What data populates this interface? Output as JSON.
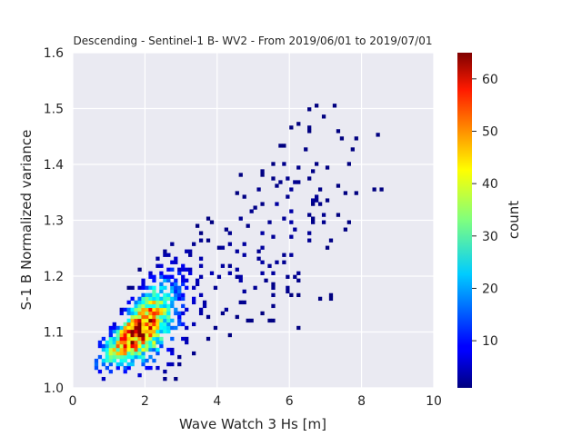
{
  "chart_data": {
    "type": "heatmap",
    "title": "Descending - Sentinel-1 B- WV2 - From 2019/06/01 to 2019/07/01",
    "xlabel": "Wave Watch 3 Hs [m]",
    "ylabel": "S-1 B Normalized variance",
    "xlim": [
      0,
      10
    ],
    "ylim": [
      1.0,
      1.6
    ],
    "xticks": [
      0,
      2,
      4,
      6,
      8,
      10
    ],
    "yticks": [
      1.0,
      1.1,
      1.2,
      1.3,
      1.4,
      1.5,
      1.6
    ],
    "grid": true,
    "colormap": "jet",
    "colorbar": {
      "label": "count",
      "min": 1,
      "max": 65,
      "ticks": [
        10,
        20,
        30,
        40,
        50,
        60
      ]
    },
    "density_model": {
      "description": "2D histogram of counts; dense core near Hs 1.5-2 m, variance 1.07-1.10, spreading upward with Hs",
      "core": {
        "x": 1.8,
        "y": 1.085,
        "peak_count": 64
      },
      "x_range": [
        0.6,
        9.8
      ],
      "y_range": [
        1.0,
        1.55
      ]
    }
  }
}
